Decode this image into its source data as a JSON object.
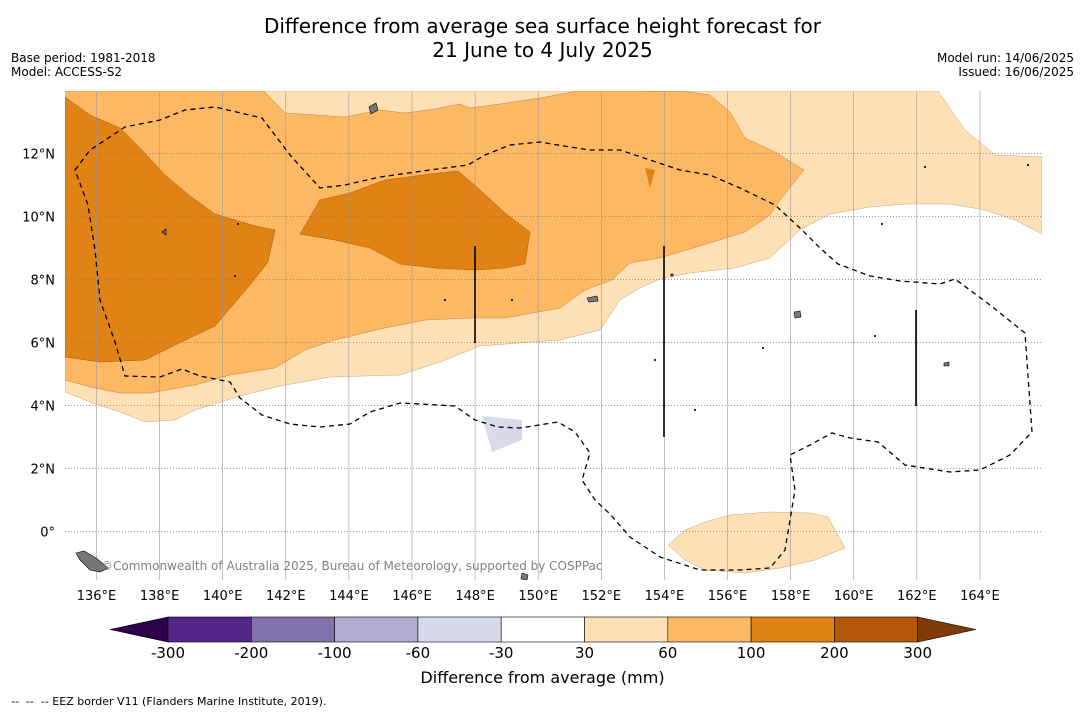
{
  "title_line1": "Difference from average sea surface height forecast for",
  "title_line2": "21 June to 4 July 2025",
  "base_period": "Base period: 1981-2018",
  "model": "Model: ACCESS-S2",
  "model_run": "Model run: 14/06/2025",
  "issued": "Issued: 16/06/2025",
  "attribution": "©Commonwealth of Australia 2025, Bureau of Meteorology, supported by COSPPac",
  "footer": "--  --  -- EEZ border V11 (Flanders Marine Institute, 2019).",
  "colorbar": {
    "label": "Difference from average (mm)",
    "ticks": [
      "-300",
      "-200",
      "-100",
      "-60",
      "-30",
      "30",
      "60",
      "100",
      "200",
      "300"
    ],
    "colors": [
      "#542788",
      "#8073ac",
      "#b2abd2",
      "#d8daeb",
      "#ffffff",
      "#fee0b6",
      "#fdb863",
      "#e08214",
      "#b35806"
    ],
    "under_color": "#2d004b",
    "over_color": "#7f3b08"
  },
  "axes": {
    "lon_labels": [
      "136°E",
      "138°E",
      "140°E",
      "142°E",
      "144°E",
      "146°E",
      "148°E",
      "150°E",
      "152°E",
      "154°E",
      "156°E",
      "158°E",
      "160°E",
      "162°E",
      "164°E"
    ],
    "lat_labels": [
      "12°N",
      "10°N",
      "8°N",
      "6°N",
      "4°N",
      "2°N",
      "0°"
    ]
  }
}
